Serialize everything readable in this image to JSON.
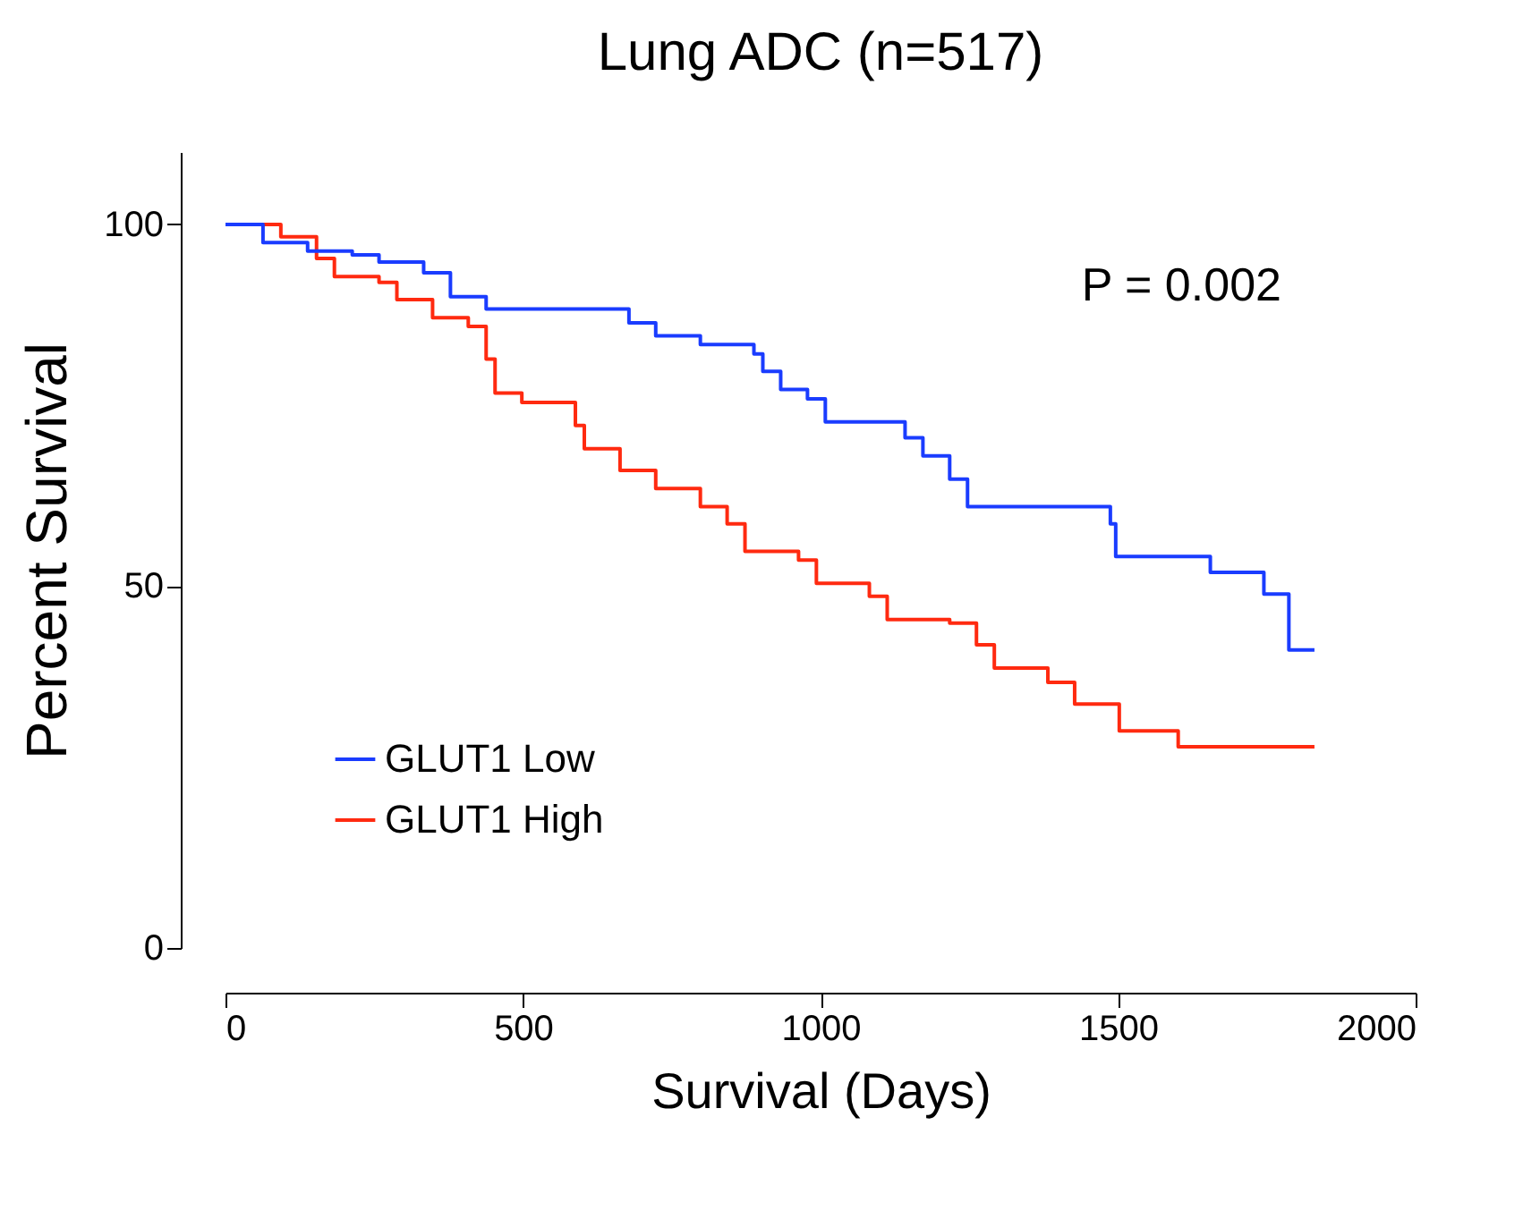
{
  "chart_data": {
    "type": "step",
    "title": "Lung ADC (n=517)",
    "xlabel": "Survival (Days)",
    "ylabel": "Percent Survival",
    "xlim": [
      0,
      2000
    ],
    "xticks": [
      0,
      500,
      1000,
      1500,
      2000
    ],
    "ylim": [
      0,
      110
    ],
    "yticks": [
      0,
      50,
      100
    ],
    "grid": false,
    "legend": "bottom left",
    "marker": "none",
    "line_style": "solid",
    "annotations": [
      "P = 0.002"
    ],
    "series": [
      {
        "name": "GLUT1 Low",
        "color": "#1a3cff",
        "x": [
          0,
          63,
          138,
          213,
          258,
          333,
          378,
          438,
          633,
          678,
          723,
          798,
          888,
          903,
          933,
          978,
          1008,
          1097,
          1142,
          1172,
          1217,
          1247,
          1427,
          1487,
          1496,
          1625,
          1655,
          1745,
          1787,
          1830
        ],
        "values": [
          100,
          97.5,
          96.3,
          95.8,
          94.8,
          93.3,
          90,
          88.3,
          88.3,
          86.4,
          84.6,
          83.4,
          82.1,
          79.7,
          77.2,
          75.9,
          72.7,
          72.7,
          70.5,
          68,
          64.8,
          61,
          61,
          58.6,
          54.1,
          54.1,
          51.9,
          48.9,
          41.2,
          41.2
        ]
      },
      {
        "name": "GLUT1 High",
        "color": "#ff2a10",
        "x": [
          0,
          93,
          153,
          183,
          258,
          288,
          348,
          408,
          438,
          453,
          498,
          573,
          588,
          603,
          663,
          723,
          798,
          843,
          873,
          963,
          993,
          1082,
          1112,
          1217,
          1262,
          1292,
          1382,
          1427,
          1502,
          1601,
          1830
        ],
        "values": [
          100,
          98.3,
          95.3,
          92.8,
          92,
          89.6,
          87.1,
          85.9,
          81.4,
          76.7,
          75.4,
          75.4,
          72.2,
          69,
          66,
          63.5,
          61,
          58.6,
          54.8,
          53.6,
          50.4,
          48.6,
          45.4,
          44.9,
          41.9,
          38.7,
          36.7,
          33.7,
          30,
          27.8,
          27.8
        ]
      }
    ]
  }
}
